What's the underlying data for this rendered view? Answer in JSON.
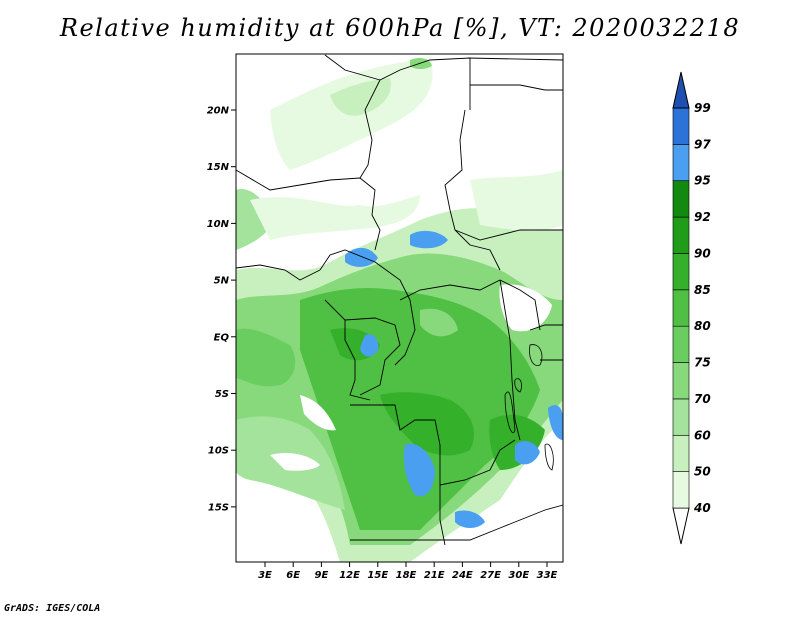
{
  "title": "Relative humidity at 600hPa [%], VT: 2020032218",
  "credit": "GrADS: IGES/COLA",
  "map": {
    "lat_labels": [
      "20N",
      "15N",
      "10N",
      "5N",
      "EQ",
      "5S",
      "10S",
      "15S"
    ],
    "lon_labels": [
      "3E",
      "6E",
      "9E",
      "12E",
      "15E",
      "18E",
      "21E",
      "24E",
      "27E",
      "30E",
      "33E"
    ]
  },
  "colorbar": {
    "levels": [
      "40",
      "50",
      "60",
      "70",
      "75",
      "80",
      "85",
      "90",
      "92",
      "95",
      "97",
      "99"
    ],
    "colors": [
      "#ffffff",
      "#e6f9e1",
      "#c8f0be",
      "#a4e39c",
      "#87d97c",
      "#6acd5f",
      "#4fc043",
      "#34b02b",
      "#1f9d19",
      "#128a10",
      "#4a9ff0",
      "#2b72d9",
      "#1f4fb0"
    ]
  },
  "colors": {
    "border": "#000000",
    "frame": "#000000"
  }
}
